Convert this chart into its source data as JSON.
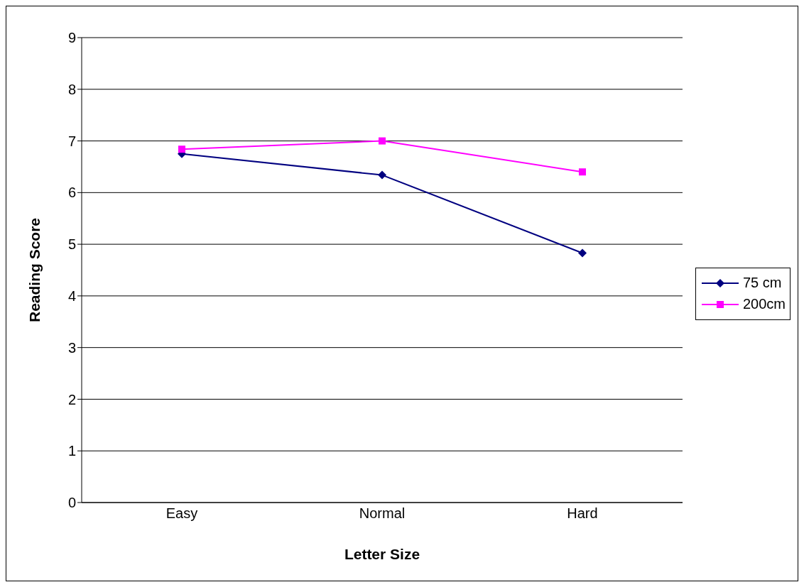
{
  "chart_data": {
    "type": "line",
    "xlabel": "Letter Size",
    "ylabel": "Reading Score",
    "categories": [
      "Easy",
      "Normal",
      "Hard"
    ],
    "series": [
      {
        "name": "75 cm",
        "color": "#000080",
        "marker": "diamond",
        "values": [
          6.75,
          6.34,
          4.83
        ]
      },
      {
        "name": "200cm",
        "color": "#ff00ff",
        "marker": "square",
        "values": [
          6.84,
          7.0,
          6.4
        ]
      }
    ],
    "ylim": [
      0,
      9
    ],
    "yticks": [
      0,
      1,
      2,
      3,
      4,
      5,
      6,
      7,
      8,
      9
    ],
    "grid": "y",
    "legend": "right",
    "line_style": "solid"
  }
}
